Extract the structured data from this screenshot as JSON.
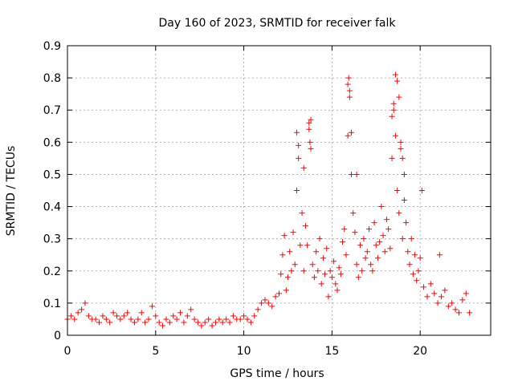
{
  "chart_data": {
    "type": "scatter",
    "title": "Day 160 of 2023, SRMTID for receiver falk",
    "xlabel": "GPS time / hours",
    "ylabel": "SRMTID / TECUs",
    "xlim": [
      0,
      24
    ],
    "ylim": [
      0,
      0.9
    ],
    "xticks": [
      "0",
      "5",
      "10",
      "15",
      "20"
    ],
    "xtick_values": [
      0,
      5,
      10,
      15,
      20
    ],
    "yticks": [
      "0",
      "0.1",
      "0.2",
      "0.3",
      "0.4",
      "0.5",
      "0.6",
      "0.7",
      "0.8",
      "0.9"
    ],
    "ytick_values": [
      0,
      0.1,
      0.2,
      0.3,
      0.4,
      0.5,
      0.6,
      0.7,
      0.8,
      0.9
    ],
    "grid": true,
    "marker": "+",
    "series": [
      {
        "name": "SRMTID",
        "color": "#ff0000",
        "x": [
          0.0,
          0.2,
          0.4,
          0.6,
          0.8,
          1.0,
          1.2,
          1.4,
          1.6,
          1.8,
          2.0,
          2.2,
          2.4,
          2.6,
          2.8,
          3.0,
          3.2,
          3.4,
          3.6,
          3.8,
          4.0,
          4.2,
          4.4,
          4.6,
          4.8,
          5.0,
          5.2,
          5.4,
          5.6,
          5.8,
          6.0,
          6.2,
          6.4,
          6.6,
          6.8,
          7.0,
          7.2,
          7.4,
          7.6,
          7.8,
          8.0,
          8.2,
          8.4,
          8.6,
          8.8,
          9.0,
          9.2,
          9.4,
          9.6,
          9.8,
          10.0,
          10.2,
          10.4,
          10.6,
          10.8,
          11.0,
          11.2,
          11.4,
          11.6,
          11.8,
          12.0,
          12.1,
          12.2,
          12.3,
          12.4,
          12.5,
          12.6,
          12.7,
          12.8,
          12.9,
          13.0,
          13.1,
          13.2,
          13.3,
          13.4,
          13.5,
          13.6,
          13.7,
          13.8,
          13.9,
          14.0,
          14.1,
          14.2,
          14.3,
          14.4,
          14.5,
          14.6,
          14.7,
          14.8,
          14.9,
          15.0,
          15.1,
          15.2,
          15.3,
          15.4,
          15.5,
          15.6,
          15.7,
          15.8,
          15.9,
          16.0,
          16.1,
          16.2,
          16.3,
          16.4,
          16.5,
          16.6,
          16.7,
          16.8,
          16.9,
          17.0,
          17.1,
          17.2,
          17.3,
          17.4,
          17.5,
          17.6,
          17.7,
          17.8,
          17.9,
          18.0,
          18.1,
          18.2,
          18.3,
          18.4,
          18.5,
          18.6,
          18.7,
          18.8,
          18.9,
          19.0,
          19.1,
          19.2,
          19.3,
          19.4,
          19.5,
          19.6,
          19.7,
          19.8,
          19.9,
          20.0,
          20.2,
          20.4,
          20.6,
          20.8,
          21.0,
          21.2,
          21.4,
          21.6,
          21.8,
          22.0,
          22.2,
          22.4,
          22.6,
          22.8,
          13.7,
          13.75,
          13.8,
          15.9,
          15.95,
          16.0,
          18.5,
          18.6,
          18.7,
          18.8,
          18.4,
          13.0,
          13.1,
          16.1,
          18.9,
          13.4,
          16.4,
          19.0,
          19.1,
          20.1,
          21.1
        ],
        "y": [
          0.05,
          0.06,
          0.05,
          0.07,
          0.08,
          0.1,
          0.06,
          0.05,
          0.05,
          0.04,
          0.06,
          0.05,
          0.04,
          0.07,
          0.06,
          0.05,
          0.06,
          0.07,
          0.05,
          0.04,
          0.05,
          0.07,
          0.04,
          0.05,
          0.09,
          0.06,
          0.04,
          0.03,
          0.05,
          0.04,
          0.06,
          0.05,
          0.07,
          0.04,
          0.06,
          0.08,
          0.05,
          0.04,
          0.03,
          0.04,
          0.05,
          0.03,
          0.04,
          0.05,
          0.04,
          0.05,
          0.04,
          0.06,
          0.05,
          0.05,
          0.06,
          0.05,
          0.04,
          0.06,
          0.08,
          0.1,
          0.11,
          0.1,
          0.09,
          0.12,
          0.13,
          0.19,
          0.25,
          0.31,
          0.14,
          0.18,
          0.26,
          0.2,
          0.32,
          0.22,
          0.45,
          0.55,
          0.28,
          0.38,
          0.2,
          0.34,
          0.28,
          0.64,
          0.58,
          0.22,
          0.18,
          0.26,
          0.2,
          0.3,
          0.16,
          0.24,
          0.19,
          0.27,
          0.12,
          0.2,
          0.18,
          0.23,
          0.16,
          0.14,
          0.21,
          0.19,
          0.29,
          0.33,
          0.25,
          0.62,
          0.74,
          0.5,
          0.38,
          0.32,
          0.22,
          0.18,
          0.28,
          0.2,
          0.3,
          0.24,
          0.26,
          0.33,
          0.22,
          0.2,
          0.35,
          0.28,
          0.24,
          0.29,
          0.4,
          0.31,
          0.26,
          0.36,
          0.33,
          0.27,
          0.55,
          0.7,
          0.62,
          0.45,
          0.38,
          0.58,
          0.3,
          0.42,
          0.35,
          0.26,
          0.22,
          0.3,
          0.19,
          0.25,
          0.17,
          0.2,
          0.24,
          0.15,
          0.12,
          0.16,
          0.13,
          0.1,
          0.12,
          0.14,
          0.09,
          0.1,
          0.08,
          0.07,
          0.11,
          0.13,
          0.07,
          0.66,
          0.6,
          0.67,
          0.78,
          0.8,
          0.76,
          0.72,
          0.81,
          0.79,
          0.74,
          0.68,
          0.63,
          0.59,
          0.63,
          0.6,
          0.52,
          0.5,
          0.55,
          0.5,
          0.45,
          0.25
        ]
      }
    ]
  }
}
